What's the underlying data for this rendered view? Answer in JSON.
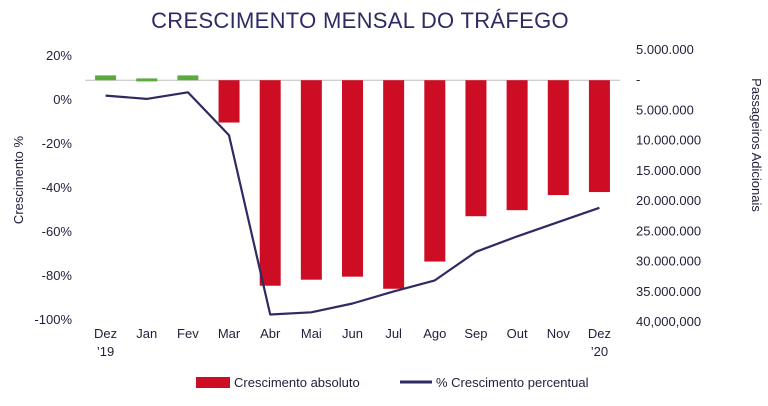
{
  "chart_data": {
    "type": "bar+line",
    "title": "CRESCIMENTO MENSAL DO TRÁFEGO",
    "categories": [
      [
        "Dez",
        "’19"
      ],
      [
        "Jan",
        ""
      ],
      [
        "Fev",
        ""
      ],
      [
        "Mar",
        ""
      ],
      [
        "Abr",
        ""
      ],
      [
        "Mai",
        ""
      ],
      [
        "Jun",
        ""
      ],
      [
        "Jul",
        ""
      ],
      [
        "Ago",
        ""
      ],
      [
        "Sep",
        ""
      ],
      [
        "Out",
        ""
      ],
      [
        "Nov",
        ""
      ],
      [
        "Dez",
        "’20"
      ]
    ],
    "left_axis": {
      "label": "Crescimento %",
      "ticks": [
        "20%",
        "0%",
        "-20%",
        "-40%",
        "-60%",
        "-80%",
        "-100%"
      ],
      "tick_values": [
        20,
        0,
        -20,
        -40,
        -60,
        -80,
        -100
      ],
      "range": [
        -100,
        20
      ]
    },
    "right_axis": {
      "label": "Passageiros Adicionais",
      "ticks": [
        "5.000.000",
        "-",
        "5.000.000",
        "10.000.000",
        "15.000.000",
        "20.000.000",
        "25.000.000",
        "30.000.000",
        "35.000.000",
        "40,000,000"
      ],
      "tick_values": [
        5000000,
        0,
        -5000000,
        -10000000,
        -15000000,
        -20000000,
        -25000000,
        -30000000,
        -35000000,
        -40000000
      ],
      "range": [
        -40000000,
        5000000
      ]
    },
    "series": [
      {
        "name": "Crescimento absoluto",
        "kind": "bar",
        "axis": "right",
        "values": [
          800000,
          300000,
          800000,
          -7000000,
          -34000000,
          -33000000,
          -32500000,
          -34500000,
          -30000000,
          -22500000,
          -21500000,
          -19000000,
          -18500000
        ]
      },
      {
        "name": "% Crescimento percentual",
        "kind": "line",
        "axis": "left",
        "values": [
          2,
          0.5,
          3.5,
          -16,
          -97.5,
          -96.5,
          -92.5,
          -87,
          -82,
          -69,
          -62,
          -55.5,
          -49
        ]
      }
    ],
    "colors": {
      "bar_negative": "#cc0d23",
      "bar_positive": "#5aaa3c",
      "line": "#2e2a63",
      "zero_line": "#bdbdbd"
    },
    "legend_position": "bottom"
  }
}
